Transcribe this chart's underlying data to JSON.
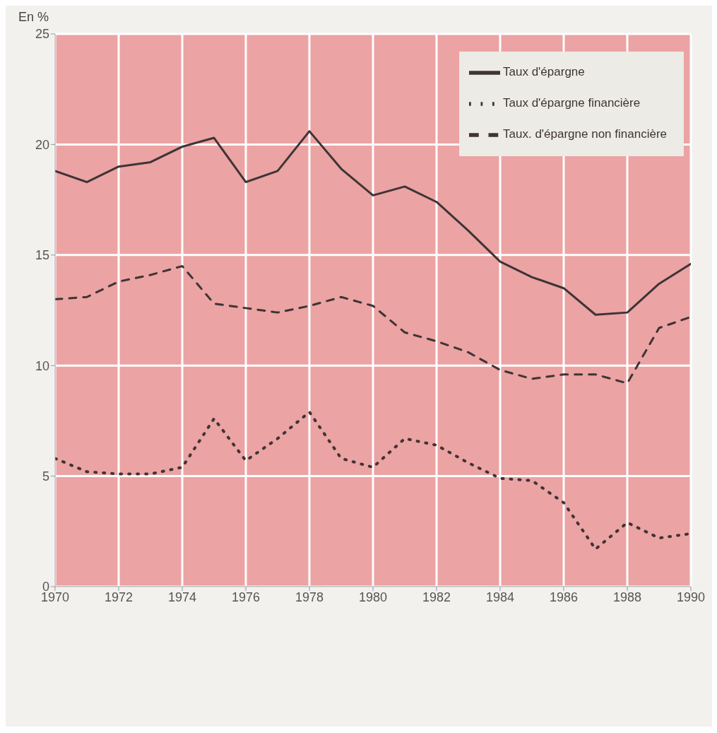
{
  "chart_data": {
    "type": "line",
    "ylabel": "En %",
    "x": [
      1970,
      1971,
      1972,
      1973,
      1974,
      1975,
      1976,
      1977,
      1978,
      1979,
      1980,
      1981,
      1982,
      1983,
      1984,
      1985,
      1986,
      1987,
      1988,
      1989,
      1990
    ],
    "series": [
      {
        "name": "Taux d'épargne",
        "color": "#3e3436",
        "line_style": "solid",
        "values": [
          18.8,
          18.3,
          19.0,
          19.2,
          19.9,
          20.3,
          18.3,
          18.8,
          20.6,
          18.9,
          17.7,
          18.1,
          17.4,
          16.1,
          14.7,
          14.0,
          13.5,
          12.3,
          12.4,
          13.7,
          14.6
        ]
      },
      {
        "name": "Taux. d'épargne non financière",
        "color": "#3e3436",
        "line_style": "dashed",
        "values": [
          13.0,
          13.1,
          13.8,
          14.1,
          14.5,
          12.8,
          12.6,
          12.4,
          12.7,
          13.1,
          12.7,
          11.5,
          11.1,
          10.6,
          9.8,
          9.4,
          9.6,
          9.6,
          9.2,
          11.7,
          12.2
        ]
      },
      {
        "name": "Taux d'épargne financière",
        "color": "#3e3436",
        "line_style": "dotted",
        "values": [
          5.8,
          5.2,
          5.1,
          5.1,
          5.4,
          7.6,
          5.7,
          6.7,
          7.9,
          5.8,
          5.4,
          6.7,
          6.4,
          5.6,
          4.9,
          4.8,
          3.8,
          1.7,
          2.9,
          2.2,
          2.4
        ]
      }
    ],
    "xlim": [
      1970,
      1990
    ],
    "xticks": [
      1970,
      1972,
      1974,
      1976,
      1978,
      1980,
      1982,
      1984,
      1986,
      1988,
      1990
    ],
    "ylim": [
      0,
      25
    ],
    "yticks": [
      0,
      5,
      10,
      15,
      20,
      25
    ],
    "grid": true,
    "legend": "top right",
    "marker": "none"
  }
}
